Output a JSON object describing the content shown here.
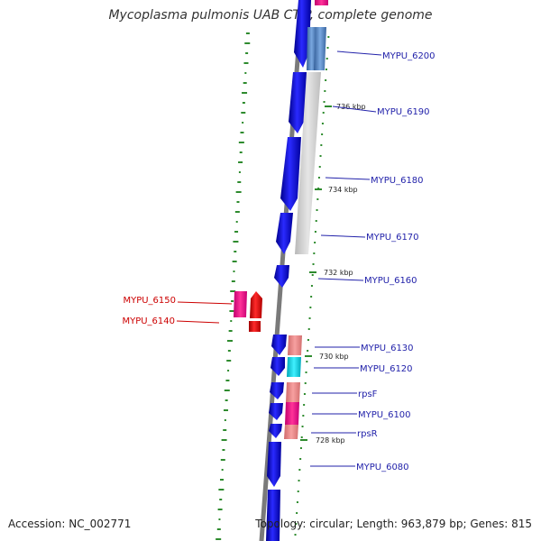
{
  "title": "Mycoplasma pulmonis UAB CTIP, complete genome",
  "footer": {
    "accession": "Accession: NC_002771",
    "topology": "Topology: circular; Length: 963,879 bp; Genes: 815"
  },
  "colors": {
    "forward_cds": "#1a1aff",
    "reverse_cds": "#ff1a1a",
    "label_forward": "#2222aa",
    "label_reverse": "#cc0000",
    "backbone": "#7a7a7a",
    "gc_tick": "#2e8b2e"
  },
  "tick_labels": [
    "736 kbp",
    "734 kbp",
    "732 kbp",
    "730 kbp",
    "728 kbp"
  ],
  "gene_labels": {
    "right": [
      "MYPU_6200",
      "MYPU_6190",
      "MYPU_6180",
      "MYPU_6170",
      "MYPU_6160",
      "MYPU_6130",
      "MYPU_6120",
      "rpsF",
      "MYPU_6100",
      "rpsR",
      "MYPU_6080"
    ],
    "left": [
      "MYPU_6150",
      "MYPU_6140"
    ]
  }
}
